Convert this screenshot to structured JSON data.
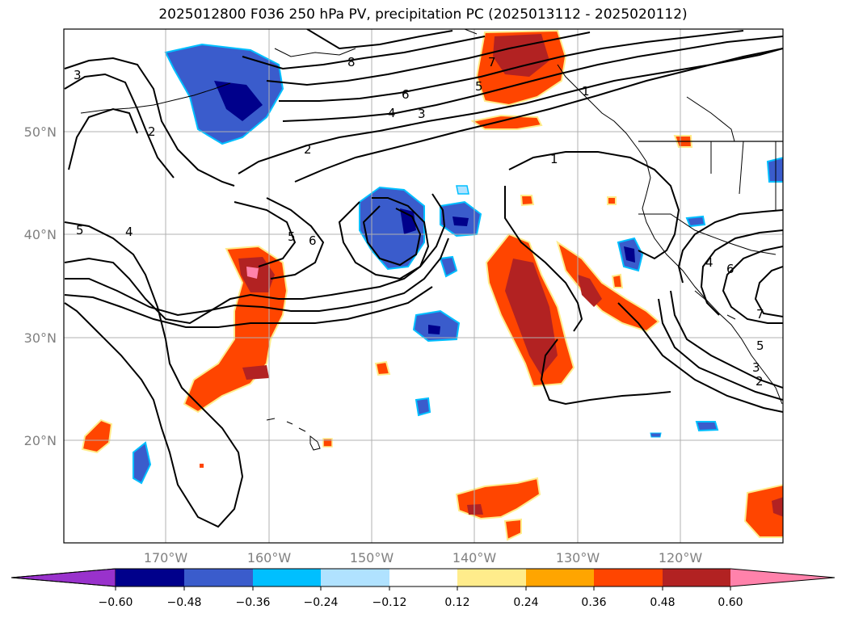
{
  "title": "2025012800 F036 250 hPa PV, precipitation PC (2025013112 - 2025020112)",
  "map": {
    "lat_labels": [
      "50°N",
      "40°N",
      "30°N",
      "20°N"
    ],
    "lon_labels": [
      "170°W",
      "160°W",
      "150°W",
      "140°W",
      "130°W",
      "120°W"
    ],
    "pv_contour_labels": [
      "3",
      "2",
      "8",
      "6",
      "4",
      "3",
      "7",
      "5",
      "1",
      "1",
      "2",
      "5",
      "4",
      "5",
      "6",
      "4",
      "6",
      "7",
      "5",
      "3",
      "2"
    ]
  },
  "colorbar": {
    "ticks": [
      "−0.60",
      "−0.48",
      "−0.36",
      "−0.24",
      "−0.12",
      "0.12",
      "0.24",
      "0.36",
      "0.48",
      "0.60"
    ],
    "colors": {
      "under": "#9932cc",
      "c1": "#00008b",
      "c2": "#3a5ccc",
      "c3": "#00bfff",
      "c4": "#b0e2ff",
      "c5": "#ffffff",
      "c6": "#ffec8b",
      "c7": "#ffa500",
      "c8": "#ff4500",
      "c9": "#b22222",
      "over": "#ff82ab"
    }
  }
}
